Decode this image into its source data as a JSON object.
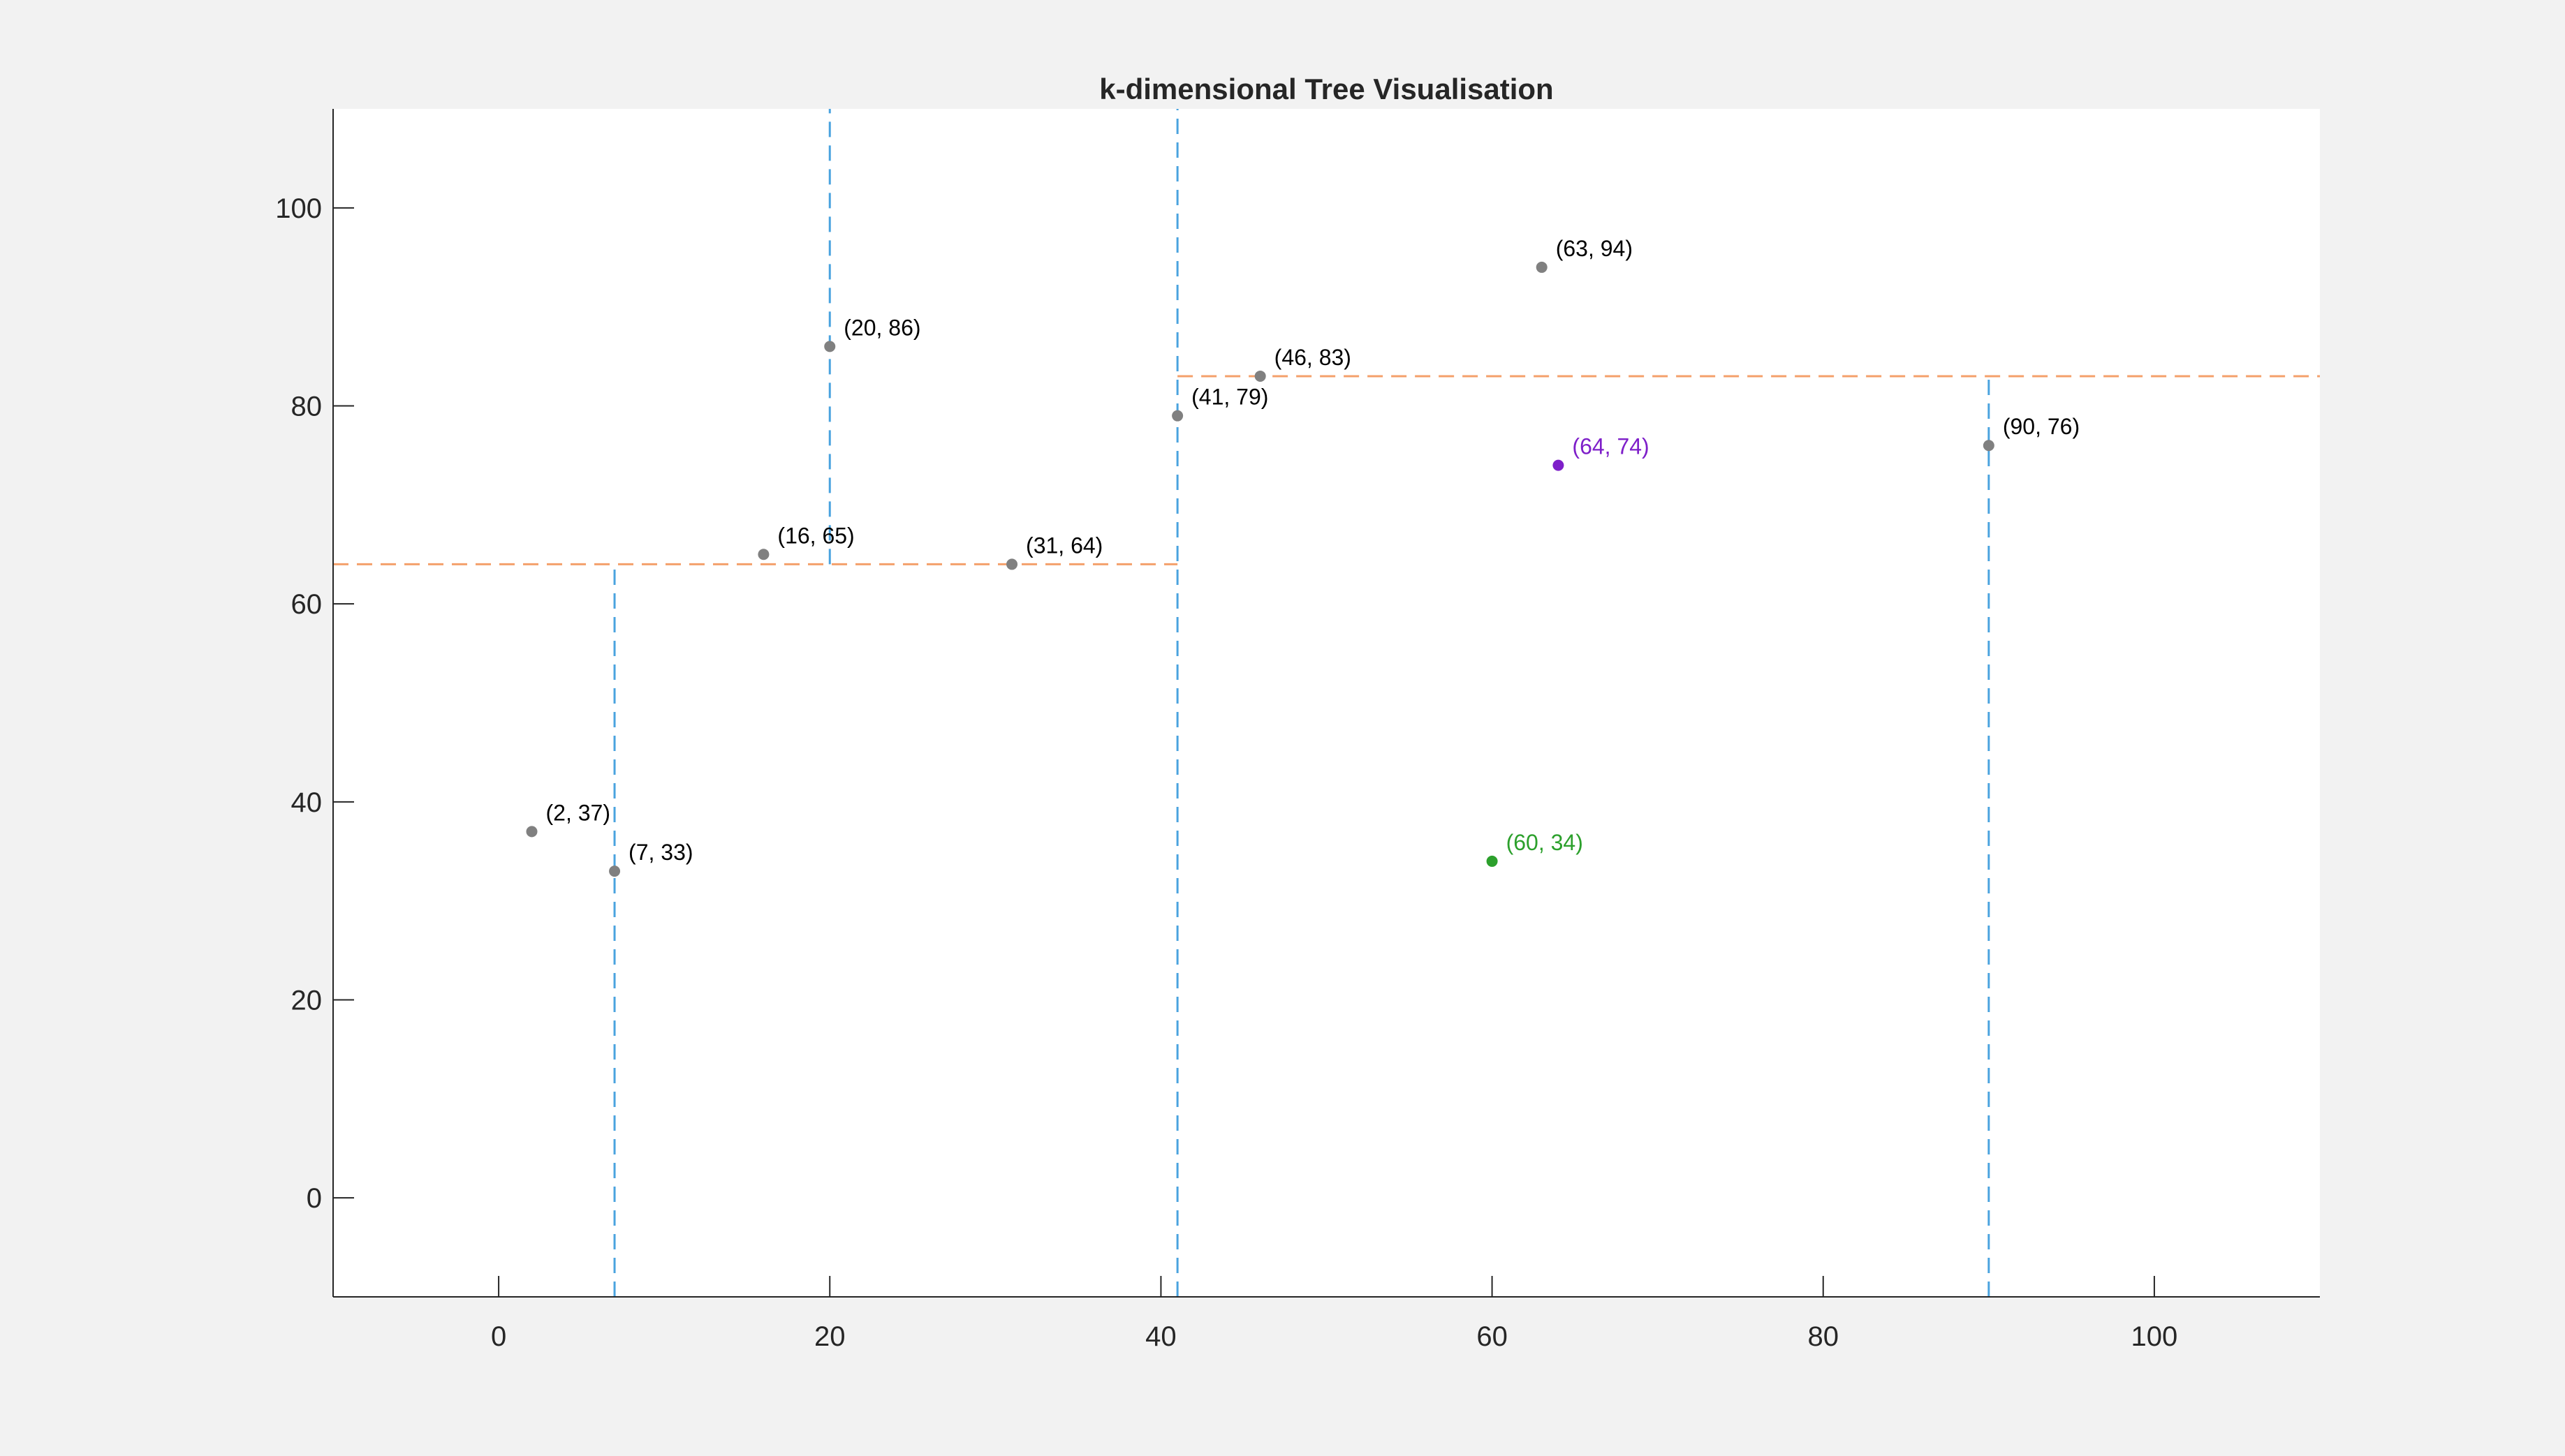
{
  "chart_data": {
    "type": "scatter",
    "title": "k-dimensional Tree Visualisation",
    "xlabel": "",
    "ylabel": "",
    "xlim": [
      -10,
      110
    ],
    "ylim": [
      -10,
      110
    ],
    "xticks": [
      0,
      20,
      40,
      60,
      80,
      100
    ],
    "yticks": [
      0,
      20,
      40,
      60,
      80,
      100
    ],
    "grid": false,
    "points": [
      {
        "x": 2,
        "y": 37,
        "label": "(2, 37)",
        "color": "#808080"
      },
      {
        "x": 7,
        "y": 33,
        "label": "(7, 33)",
        "color": "#808080"
      },
      {
        "x": 16,
        "y": 65,
        "label": "(16, 65)",
        "color": "#808080"
      },
      {
        "x": 20,
        "y": 86,
        "label": "(20, 86)",
        "color": "#808080"
      },
      {
        "x": 31,
        "y": 64,
        "label": "(31, 64)",
        "color": "#808080"
      },
      {
        "x": 41,
        "y": 79,
        "label": "(41, 79)",
        "color": "#808080"
      },
      {
        "x": 46,
        "y": 83,
        "label": "(46, 83)",
        "color": "#808080"
      },
      {
        "x": 63,
        "y": 94,
        "label": "(63, 94)",
        "color": "#808080"
      },
      {
        "x": 90,
        "y": 76,
        "label": "(90, 76)",
        "color": "#808080"
      },
      {
        "x": 60,
        "y": 34,
        "label": "(60, 34)",
        "color": "#2ca02c"
      },
      {
        "x": 64,
        "y": 74,
        "label": "(64, 74)",
        "color": "#7e1fc9"
      }
    ],
    "splits": [
      {
        "axis": "x",
        "value": 41,
        "from": -10,
        "to": 110,
        "color": "#4aa3df"
      },
      {
        "axis": "y",
        "value": 64,
        "from": -10,
        "to": 41,
        "color": "#f4a06b"
      },
      {
        "axis": "x",
        "value": 7,
        "from": -10,
        "to": 64,
        "color": "#4aa3df"
      },
      {
        "axis": "x",
        "value": 20,
        "from": 64,
        "to": 110,
        "color": "#4aa3df"
      },
      {
        "axis": "y",
        "value": 83,
        "from": 41,
        "to": 110,
        "color": "#f4a06b"
      },
      {
        "axis": "x",
        "value": 90,
        "from": -10,
        "to": 83,
        "color": "#4aa3df"
      }
    ]
  }
}
